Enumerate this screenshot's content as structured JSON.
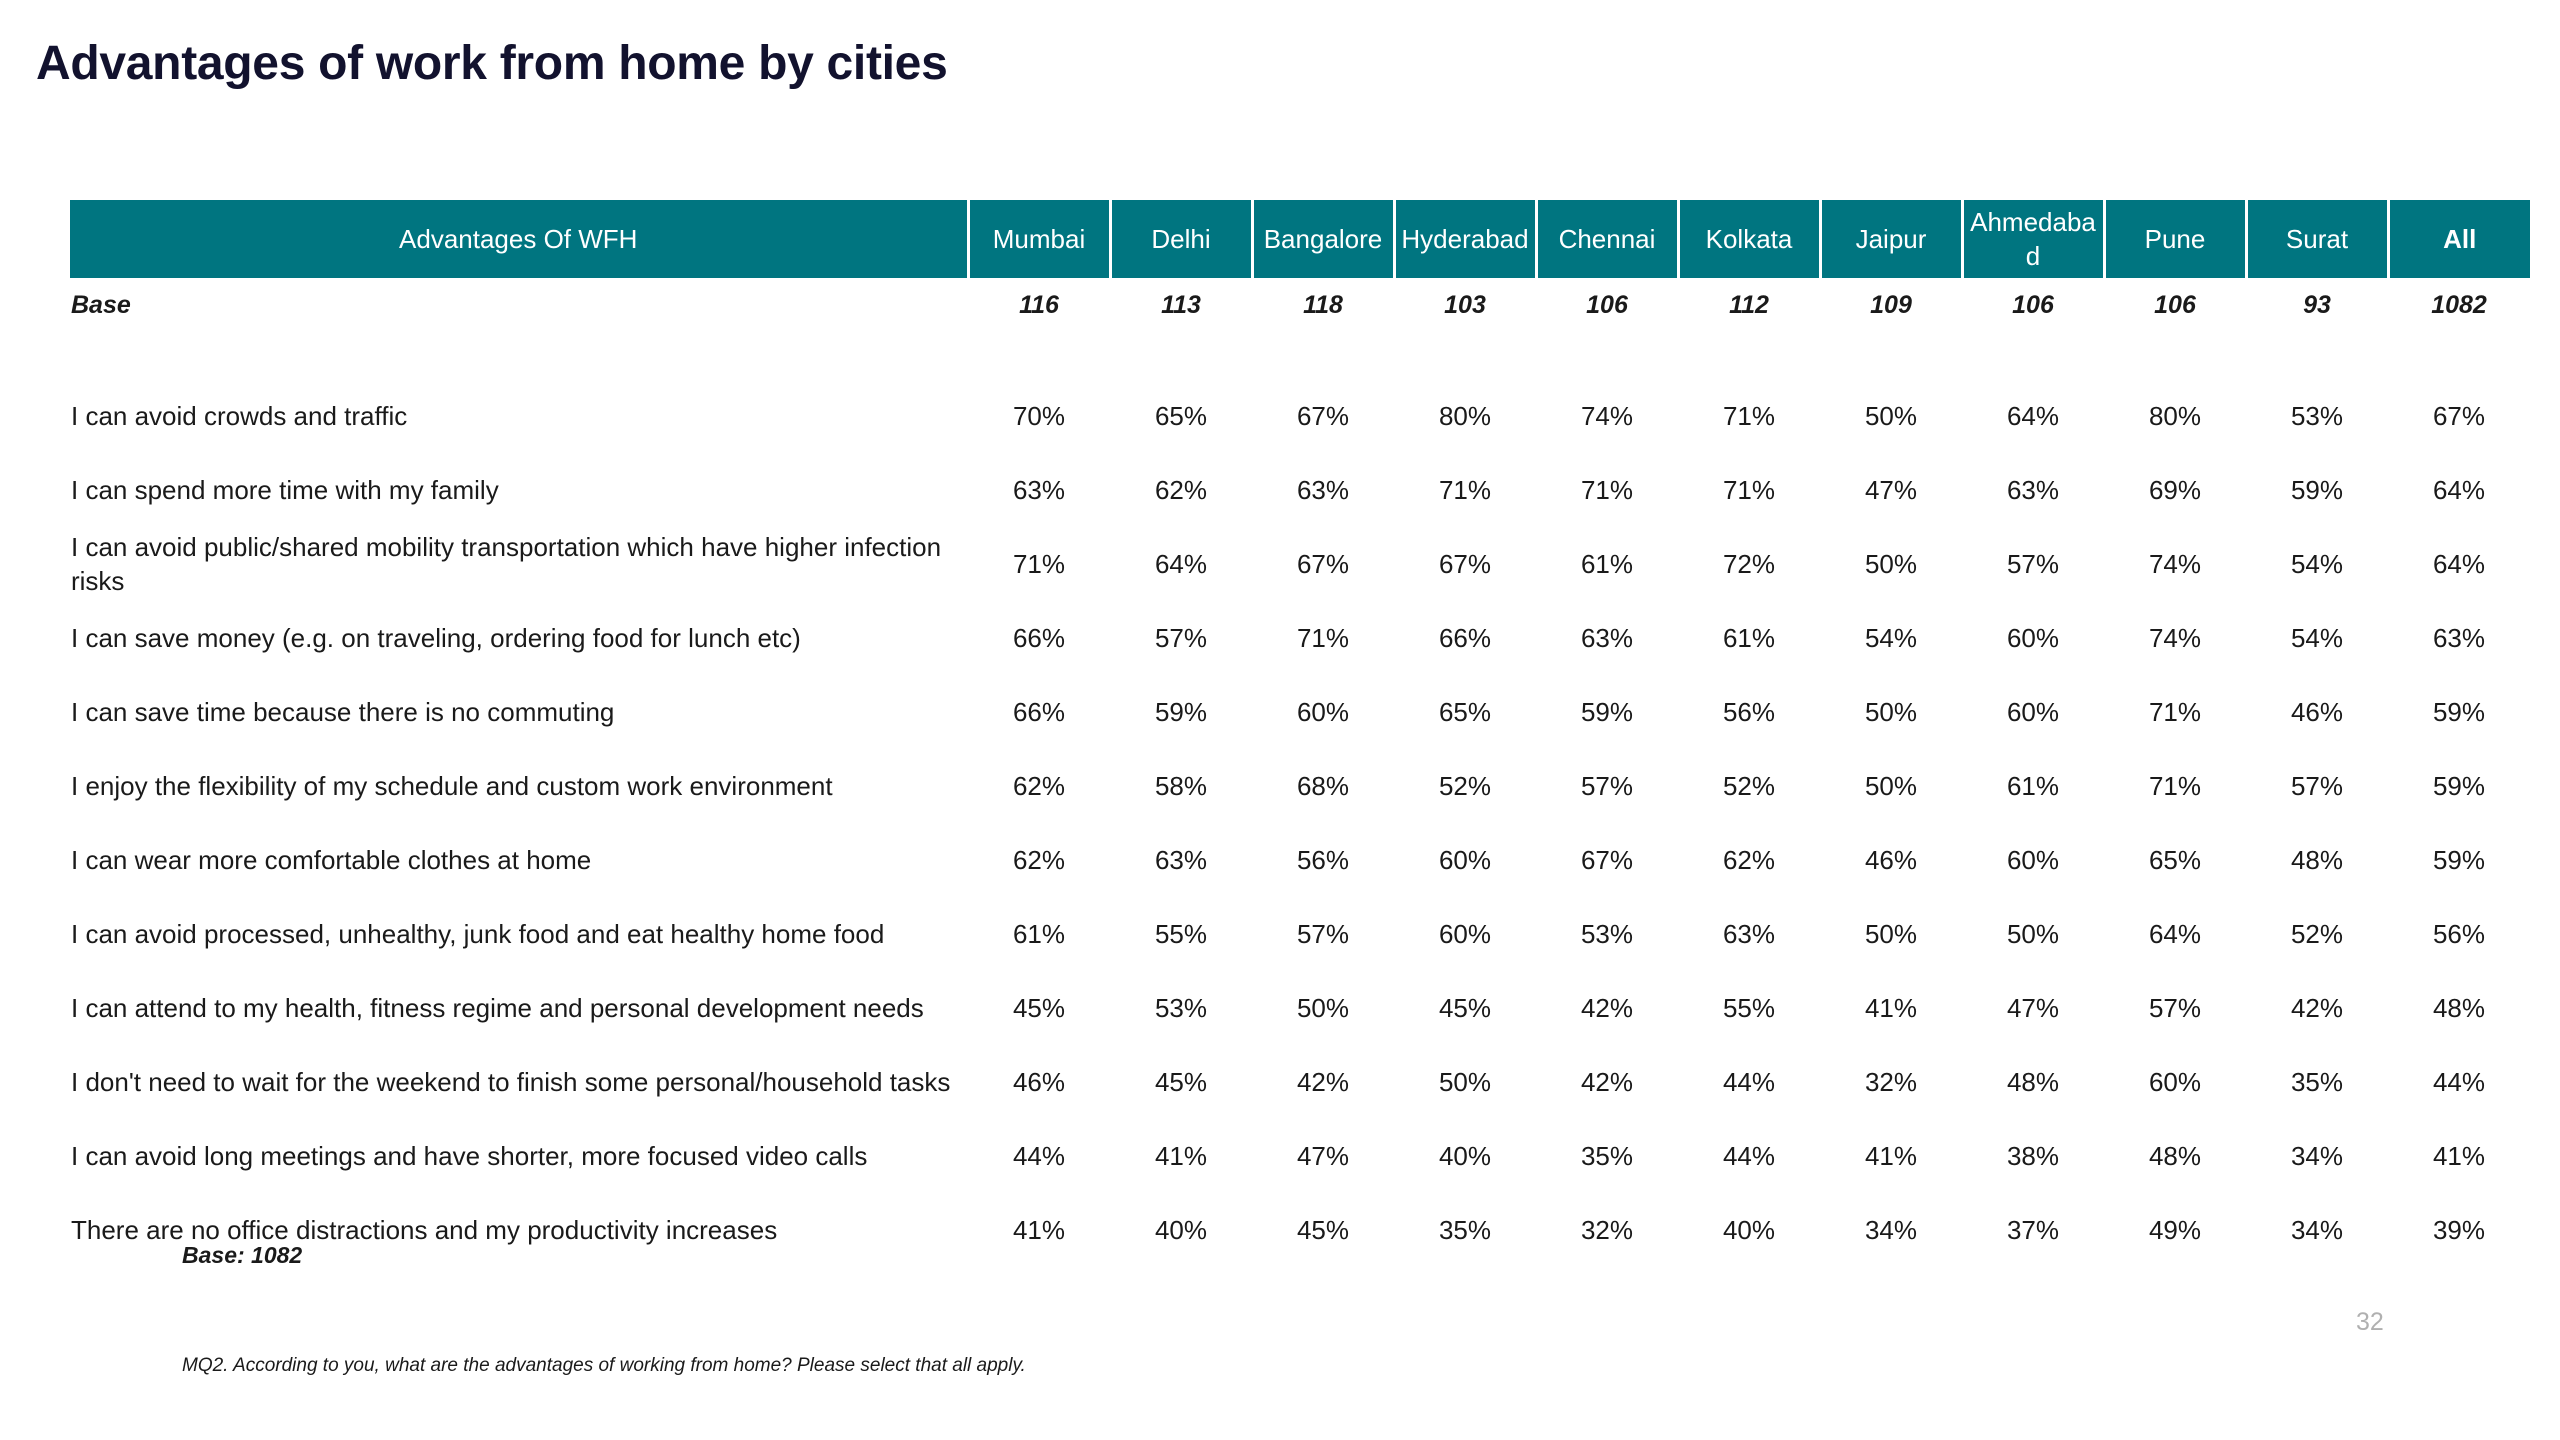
{
  "title": "Advantages of work from home by cities",
  "table": {
    "header_label": "Advantages Of WFH",
    "cities": [
      "Mumbai",
      "Delhi",
      "Bangalore",
      "Hyderabad",
      "Chennai",
      "Kolkata",
      "Jaipur",
      "Ahmedabad",
      "Pune",
      "Surat",
      "All"
    ],
    "base_label": "Base",
    "base_values": [
      "116",
      "113",
      "118",
      "103",
      "106",
      "112",
      "109",
      "106",
      "106",
      "93",
      "1082"
    ],
    "rows": [
      {
        "label": "I can avoid crowds and traffic",
        "values": [
          "70%",
          "65%",
          "67%",
          "80%",
          "74%",
          "71%",
          "50%",
          "64%",
          "80%",
          "53%",
          "67%"
        ]
      },
      {
        "label": "I can spend more time with my family",
        "values": [
          "63%",
          "62%",
          "63%",
          "71%",
          "71%",
          "71%",
          "47%",
          "63%",
          "69%",
          "59%",
          "64%"
        ]
      },
      {
        "label": "I can avoid public/shared mobility transportation which have higher infection risks",
        "values": [
          "71%",
          "64%",
          "67%",
          "67%",
          "61%",
          "72%",
          "50%",
          "57%",
          "74%",
          "54%",
          "64%"
        ]
      },
      {
        "label": "I can save money (e.g. on traveling, ordering food for lunch etc)",
        "values": [
          "66%",
          "57%",
          "71%",
          "66%",
          "63%",
          "61%",
          "54%",
          "60%",
          "74%",
          "54%",
          "63%"
        ]
      },
      {
        "label": "I can save time because there is no commuting",
        "values": [
          "66%",
          "59%",
          "60%",
          "65%",
          "59%",
          "56%",
          "50%",
          "60%",
          "71%",
          "46%",
          "59%"
        ]
      },
      {
        "label": "I enjoy the flexibility of my schedule and custom work environment",
        "values": [
          "62%",
          "58%",
          "68%",
          "52%",
          "57%",
          "52%",
          "50%",
          "61%",
          "71%",
          "57%",
          "59%"
        ]
      },
      {
        "label": "I can wear more comfortable clothes at home",
        "values": [
          "62%",
          "63%",
          "56%",
          "60%",
          "67%",
          "62%",
          "46%",
          "60%",
          "65%",
          "48%",
          "59%"
        ]
      },
      {
        "label": "I can avoid processed, unhealthy, junk food and eat healthy home food",
        "values": [
          "61%",
          "55%",
          "57%",
          "60%",
          "53%",
          "63%",
          "50%",
          "50%",
          "64%",
          "52%",
          "56%"
        ]
      },
      {
        "label": "I can attend to my health, fitness regime and personal development needs",
        "values": [
          "45%",
          "53%",
          "50%",
          "45%",
          "42%",
          "55%",
          "41%",
          "47%",
          "57%",
          "42%",
          "48%"
        ]
      },
      {
        "label": "I don't need to wait for the weekend to finish some personal/household tasks",
        "values": [
          "46%",
          "45%",
          "42%",
          "50%",
          "42%",
          "44%",
          "32%",
          "48%",
          "60%",
          "35%",
          "44%"
        ]
      },
      {
        "label": "I can avoid long meetings and have shorter, more focused video calls",
        "values": [
          "44%",
          "41%",
          "47%",
          "40%",
          "35%",
          "44%",
          "41%",
          "38%",
          "48%",
          "34%",
          "41%"
        ]
      },
      {
        "label": "There are no office distractions and my productivity increases",
        "values": [
          "41%",
          "40%",
          "45%",
          "35%",
          "32%",
          "40%",
          "34%",
          "37%",
          "49%",
          "34%",
          "39%"
        ]
      }
    ]
  },
  "base_note": "Base: 1082",
  "page_number": "32",
  "footnote": "MQ2. According to you, what are the advantages of working from home? Please select that all apply.",
  "colors": {
    "header_bg": "#007580",
    "title": "#12122e",
    "page_number": "#b0b0b0"
  }
}
